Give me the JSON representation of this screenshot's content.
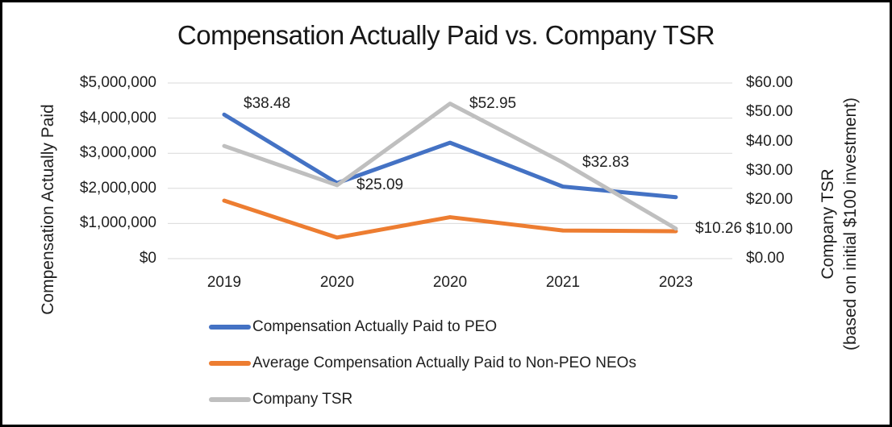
{
  "chart_data": {
    "type": "line",
    "title": "Compensation Actually Paid vs. Company TSR",
    "categories": [
      "2019",
      "2020",
      "2020",
      "2021",
      "2023"
    ],
    "grid": true,
    "legend_position": "bottom-left",
    "left_axis": {
      "title": "Compensation Actually Paid",
      "range": [
        0,
        5000000
      ],
      "ticks": [
        "$5,000,000",
        "$4,000,000",
        "$3,000,000",
        "$2,000,000",
        "$1,000,000",
        "$0"
      ]
    },
    "right_axis": {
      "title_line1": "Company TSR",
      "title_line2": "(based on initial $100 investment)",
      "range": [
        0,
        60
      ],
      "ticks": [
        "$60.00",
        "$50.00",
        "$40.00",
        "$30.00",
        "$20.00",
        "$10.00",
        "$0.00"
      ]
    },
    "series": [
      {
        "name": "Compensation Actually Paid to PEO",
        "axis": "left",
        "color": "#4472C4",
        "values": [
          4100000,
          2150000,
          3300000,
          2050000,
          1750000
        ]
      },
      {
        "name": "Average Compensation Actually Paid to Non-PEO NEOs",
        "axis": "left",
        "color": "#ED7D31",
        "values": [
          1650000,
          600000,
          1180000,
          800000,
          780000
        ]
      },
      {
        "name": "Company TSR",
        "axis": "right",
        "color": "#BFBFBF",
        "values": [
          38.48,
          25.09,
          52.95,
          32.83,
          10.26
        ],
        "point_labels": [
          "$38.48",
          "$25.09",
          "$52.95",
          "$32.83",
          "$10.26"
        ]
      }
    ],
    "colors": {
      "gridline": "#D9D9D9",
      "text": "#1f1f1f"
    }
  }
}
